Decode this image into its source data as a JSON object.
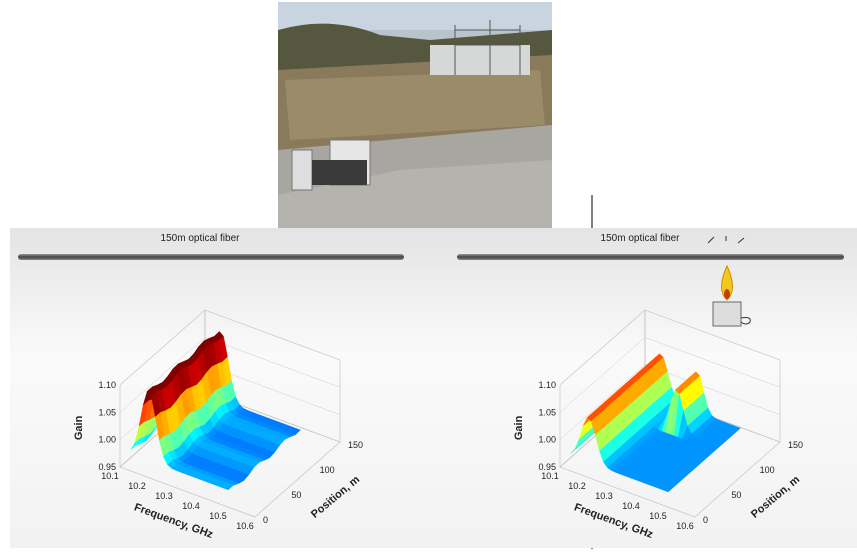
{
  "panels": [
    {
      "fiber_label": "150m optical fiber",
      "plot": {
        "z_label": "Gain",
        "x_label": "Frequency, GHz",
        "y_label": "Position, m",
        "z_ticks": [
          "0.95",
          "1.00",
          "1.05",
          "1.10"
        ],
        "x_ticks": [
          "10.1",
          "10.2",
          "10.3",
          "10.4",
          "10.5",
          "10.6"
        ],
        "y_ticks": [
          "0",
          "50",
          "100",
          "150"
        ]
      }
    },
    {
      "fiber_label": "150m optical fiber",
      "plot": {
        "z_label": "Gain",
        "x_label": "Frequency, GHz",
        "y_label": "Position, m",
        "z_ticks": [
          "0.95",
          "1.00",
          "1.05",
          "1.10"
        ],
        "x_ticks": [
          "10.1",
          "10.2",
          "10.3",
          "10.4",
          "10.5",
          "10.6"
        ],
        "y_ticks": [
          "0",
          "50",
          "100",
          "150"
        ]
      }
    }
  ]
}
